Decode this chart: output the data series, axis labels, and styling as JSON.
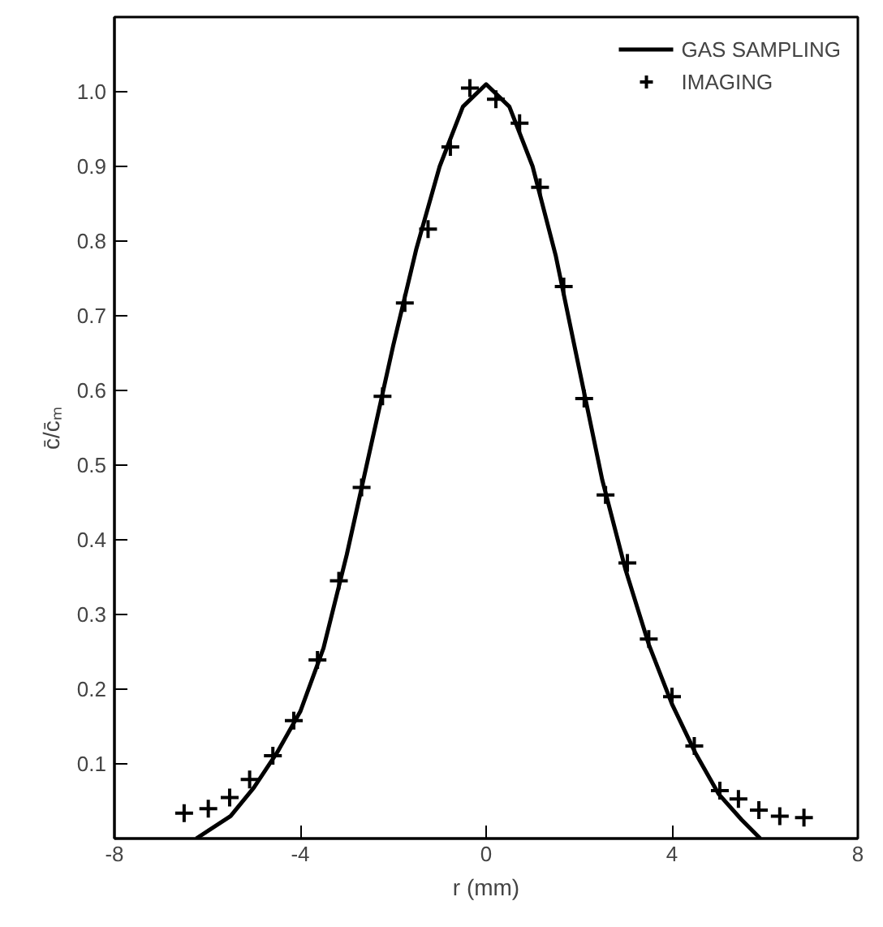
{
  "chart_data": {
    "type": "line",
    "xlabel": "r (mm)",
    "ylabel": "c̄/c̄ₘ",
    "xlim": [
      -8,
      8
    ],
    "ylim": [
      0,
      1.1
    ],
    "xticks": [
      -8,
      -4,
      0,
      4,
      8
    ],
    "yticks": [
      0.1,
      0.2,
      0.3,
      0.4,
      0.5,
      0.6,
      0.7,
      0.8,
      0.9,
      {
        "value": 1.0,
        "label": "1.0"
      }
    ],
    "grid": false,
    "legend": "top right",
    "series": [
      {
        "name": "GAS SAMPLING",
        "color": "#000000",
        "line_style": "solid",
        "x": [
          -6.24,
          -5.5,
          -5,
          -4.5,
          -4,
          -3.5,
          -3,
          -2.5,
          -2,
          -1.5,
          -1,
          -0.5,
          0,
          0.5,
          1,
          1.5,
          2,
          2.5,
          3,
          3.5,
          4,
          4.5,
          5,
          5.5,
          5.9
        ],
        "values": [
          0,
          0.03,
          0.068,
          0.115,
          0.17,
          0.255,
          0.38,
          0.52,
          0.66,
          0.79,
          0.9,
          0.98,
          1.01,
          0.98,
          0.9,
          0.78,
          0.63,
          0.48,
          0.36,
          0.26,
          0.18,
          0.115,
          0.06,
          0.025,
          0
        ]
      },
      {
        "name": "IMAGING",
        "type": "scatter",
        "color": "#000000",
        "marker": "cross",
        "x": [
          -6.5,
          -5.98,
          -5.52,
          -5.09,
          -4.59,
          -4.14,
          -3.63,
          -3.17,
          -2.68,
          -2.23,
          -1.75,
          -1.25,
          -0.77,
          -0.35,
          0.21,
          0.72,
          1.16,
          1.67,
          2.11,
          2.57,
          3.04,
          3.5,
          4.0,
          4.48,
          5.03,
          5.43,
          5.87,
          6.32,
          6.84
        ],
        "values": [
          0.034,
          0.04,
          0.055,
          0.079,
          0.111,
          0.158,
          0.239,
          0.345,
          0.47,
          0.592,
          0.717,
          0.816,
          0.926,
          1.005,
          0.99,
          0.958,
          0.872,
          0.739,
          0.589,
          0.46,
          0.369,
          0.267,
          0.19,
          0.124,
          0.064,
          0.053,
          0.038,
          0.03,
          0.028
        ]
      }
    ]
  }
}
